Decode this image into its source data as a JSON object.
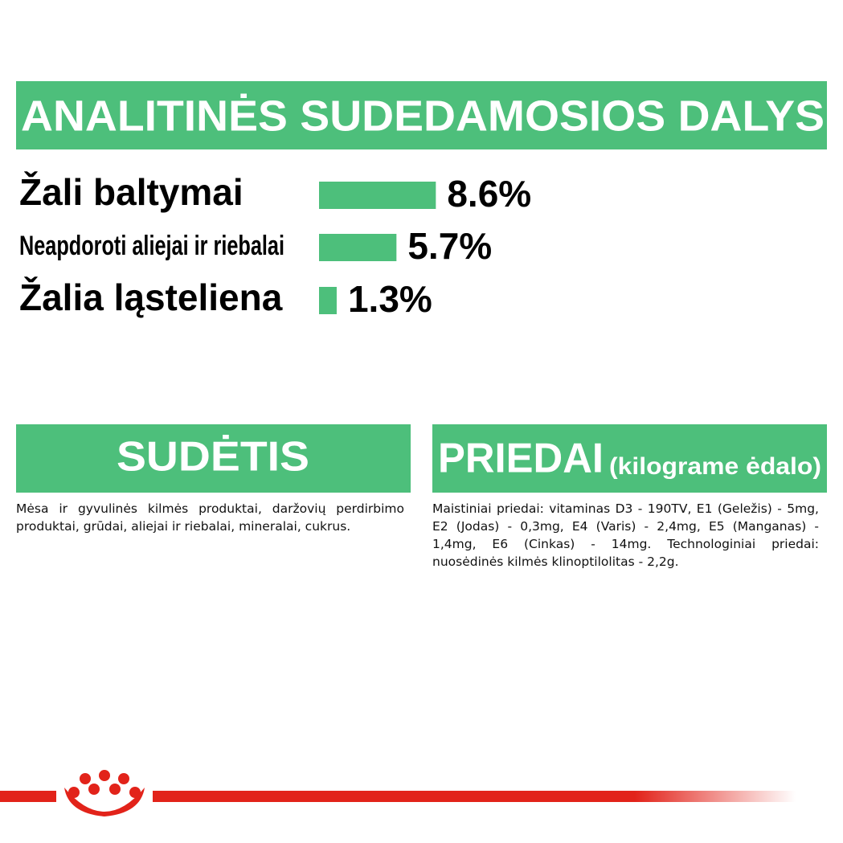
{
  "chart_data": {
    "type": "bar",
    "title": "ANALITINĖS SUDEDAMOSIOS DALYS",
    "categories": [
      "Žali baltymai",
      "Neapdoroti aliejai ir riebalai",
      "Žalia ląsteliena"
    ],
    "values": [
      8.6,
      5.7,
      1.3
    ],
    "value_labels": [
      "8.6%",
      "5.7%",
      "1.3%"
    ],
    "color": "#4dbf7b"
  },
  "sections": {
    "composition": {
      "title": "SUDĖTIS",
      "text": "Mėsa ir gyvulinės kilmės produktai, daržovių perdirbimo produktai, grūdai, aliejai ir riebalai, mineralai, cukrus."
    },
    "additives": {
      "title": "PRIEDAI",
      "subtitle": "(kilograme ėdalo)",
      "text": "Maistiniai priedai: vitaminas D3 - 190TV, E1 (Geležis) - 5mg, E2 (Jodas) - 0,3mg, E4 (Varis) - 2,4mg, E5 (Manganas) - 1,4mg, E6 (Cinkas) - 14mg. Technologiniai priedai: nuosėdinės kilmės klinoptilolitas - 2,2g."
    }
  }
}
